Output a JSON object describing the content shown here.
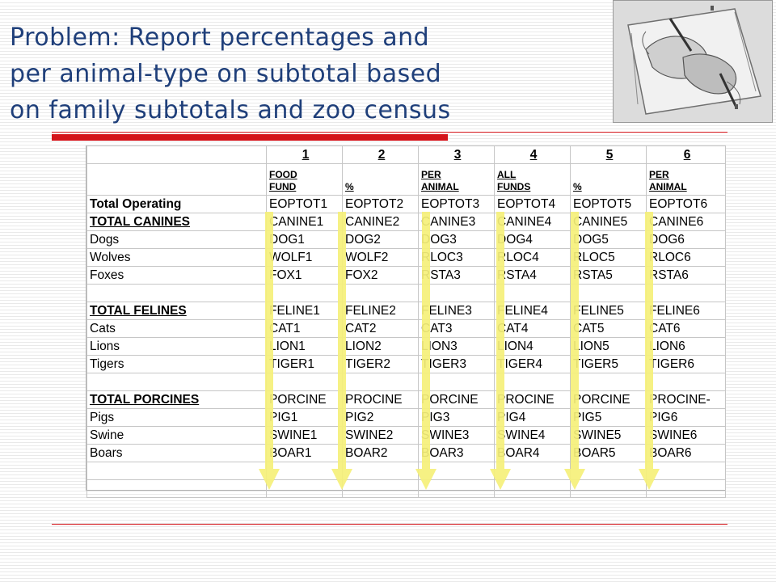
{
  "title_lines": [
    "Problem: Report percentages and",
    "per animal-type on subtotal based",
    "on family subtotals and zoo census"
  ],
  "decoration": {
    "image": "drawing-hands-illustration",
    "accent_color": "#d4141a",
    "arrow_color": "#f5f07a",
    "title_color": "#1f3f7a"
  },
  "table": {
    "column_numbers": [
      "1",
      "2",
      "3",
      "4",
      "5",
      "6"
    ],
    "column_headers": [
      [
        "FOOD",
        "FUND"
      ],
      [
        "%",
        ""
      ],
      [
        "PER",
        "ANIMAL"
      ],
      [
        "ALL",
        "FUNDS"
      ],
      [
        "%",
        ""
      ],
      [
        "PER",
        "ANIMAL"
      ]
    ],
    "rows": [
      {
        "label": "Total Operating",
        "style": "bold",
        "cells": [
          "EOPTOT1",
          "EOPTOT2",
          "EOPTOT3",
          "EOPTOT4",
          "EOPTOT5",
          "EOPTOT6"
        ]
      },
      {
        "label": "TOTAL CANINES",
        "style": "bold-underline",
        "cells": [
          "CANINE1",
          "CANINE2",
          "CANINE3",
          "CANINE4",
          "CANINE5",
          "CANINE6"
        ]
      },
      {
        "label": "Dogs",
        "style": "",
        "cells": [
          "DOG1",
          "DOG2",
          "DOG3",
          "DOG4",
          "DOG5",
          "DOG6"
        ]
      },
      {
        "label": "Wolves",
        "style": "",
        "cells": [
          "WOLF1",
          "WOLF2",
          "RLOC3",
          "RLOC4",
          "RLOC5",
          "RLOC6"
        ]
      },
      {
        "label": "Foxes",
        "style": "",
        "cells": [
          "FOX1",
          "FOX2",
          "RSTA3",
          "RSTA4",
          "RSTA5",
          "RSTA6"
        ]
      },
      {
        "label": "",
        "style": "",
        "cells": [
          "",
          "",
          "",
          "",
          "",
          ""
        ]
      },
      {
        "label": "TOTAL FELINES",
        "style": "bold-underline",
        "cells": [
          "FELINE1",
          "FELINE2",
          "FELINE3",
          "FELINE4",
          "FELINE5",
          "FELINE6"
        ]
      },
      {
        "label": "Cats",
        "style": "",
        "cells": [
          "CAT1",
          "CAT2",
          "CAT3",
          "CAT4",
          "CAT5",
          "CAT6"
        ]
      },
      {
        "label": "Lions",
        "style": "",
        "cells": [
          "LION1",
          "LION2",
          "LION3",
          "LION4",
          "LION5",
          "LION6"
        ]
      },
      {
        "label": "Tigers",
        "style": "",
        "cells": [
          "TIGER1",
          "TIGER2",
          "TIGER3",
          "TIGER4",
          "TIGER5",
          "TIGER6"
        ]
      },
      {
        "label": "",
        "style": "",
        "cells": [
          "",
          "",
          "",
          "",
          "",
          ""
        ]
      },
      {
        "label": "TOTAL PORCINES",
        "style": "bold-underline",
        "cells": [
          "PORCINE",
          "PROCINE",
          "PORCINE",
          "PROCINE",
          "PORCINE",
          "PROCINE-"
        ]
      },
      {
        "label": "Pigs",
        "style": "",
        "cells": [
          "PIG1",
          "PIG2",
          "PIG3",
          "PIG4",
          "PIG5",
          "PIG6"
        ]
      },
      {
        "label": "Swine",
        "style": "",
        "cells": [
          "SWINE1",
          "SWINE2",
          "SWINE3",
          "SWINE4",
          "SWINE5",
          "SWINE6"
        ]
      },
      {
        "label": "Boars",
        "style": "",
        "cells": [
          "BOAR1",
          "BOAR2",
          "BOAR3",
          "BOAR4",
          "BOAR5",
          "BOAR6"
        ]
      },
      {
        "label": "",
        "style": "",
        "cells": [
          "",
          "",
          "",
          "",
          "",
          ""
        ]
      },
      {
        "label": "",
        "style": "",
        "cells": [
          "",
          "",
          "",
          "",
          "",
          ""
        ]
      }
    ]
  }
}
